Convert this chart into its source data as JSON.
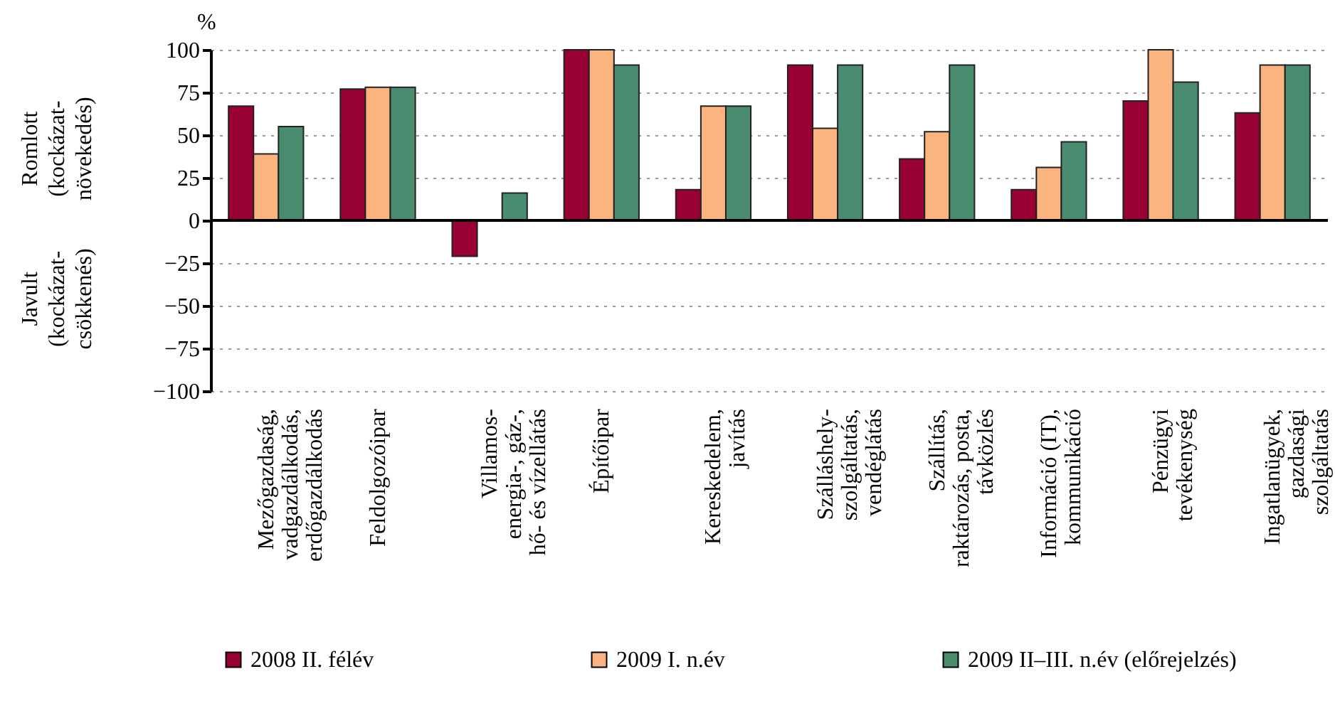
{
  "chart_data": {
    "type": "bar",
    "ylabel": "%",
    "annotations": [
      "Romlott\n(kockázat-\nnövekedés)",
      "Javult\n(kockázat-\ncsökkenés)"
    ],
    "categories": [
      "Mezőgazdaság,\nvadgazdálkodás,\nerdőgazdálkodás",
      "Feldolgozóipar",
      "Villamos-\nenergia-, gáz-,\nhő- és vízellátás",
      "Építőipar",
      "Kereskedelem,\njavítás",
      "Szálláshely-\nszolgáltatás,\nvendéglátás",
      "Szállítás,\nraktározás, posta,\ntávközlés",
      "Információ (IT),\nkommunikáció",
      "Pénzügyi\ntevékenység",
      "Ingatlanügyek,\ngazdasági\nszolgáltatás"
    ],
    "series": [
      {
        "name": "2008 II. félév",
        "color": "#990033",
        "values": [
          67,
          77,
          -21,
          100,
          18,
          91,
          36,
          18,
          70,
          63
        ]
      },
      {
        "name": "2009 I. n.év",
        "color": "#fbb47f",
        "values": [
          39,
          78,
          null,
          100,
          67,
          54,
          52,
          31,
          100,
          91
        ]
      },
      {
        "name": "2009 II–III. n.év (előrejelzés)",
        "color": "#4a8c70",
        "values": [
          55,
          78,
          16,
          91,
          67,
          91,
          91,
          46,
          81,
          91
        ]
      }
    ],
    "ylim": [
      -100,
      100
    ],
    "yticks": [
      -100,
      -75,
      -50,
      -25,
      0,
      25,
      50,
      75,
      100
    ],
    "grid": "y",
    "legend": "bottom"
  }
}
